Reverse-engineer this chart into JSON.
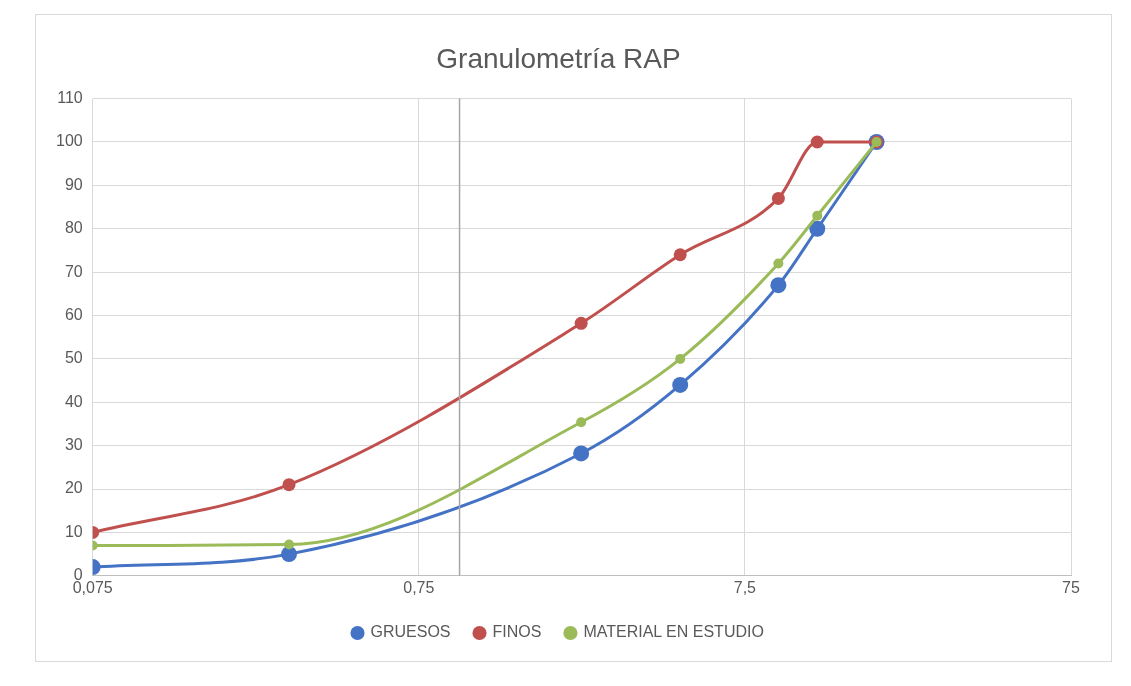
{
  "chart_data": {
    "type": "line",
    "title": "Granulometría RAP",
    "x": [
      0.075,
      0.3,
      2.36,
      4.75,
      9.5,
      12.5,
      19
    ],
    "series": [
      {
        "name": "GRUESOS",
        "color": "#4472c4",
        "values": [
          2,
          5,
          28.2,
          44,
          67,
          80,
          100
        ]
      },
      {
        "name": "FINOS",
        "color": "#c0504d",
        "values": [
          10,
          21,
          58.2,
          74,
          87,
          100,
          100
        ]
      },
      {
        "name": "MATERIAL EN ESTUDIO",
        "color": "#9bbb59",
        "values": [
          7,
          7.2,
          35.4,
          50,
          72,
          83,
          100
        ]
      }
    ],
    "log": "x",
    "xlim": [
      0.075,
      75
    ],
    "xticks": [
      {
        "value": 0.075,
        "label": "0,075"
      },
      {
        "value": 0.75,
        "label": "0,75"
      },
      {
        "value": 7.5,
        "label": "7,5"
      },
      {
        "value": 75,
        "label": "75"
      }
    ],
    "ylim": [
      0,
      110
    ],
    "yticks": [
      0,
      10,
      20,
      30,
      40,
      50,
      60,
      70,
      80,
      90,
      100,
      110
    ],
    "grid": true,
    "legend": "bottom",
    "marker": "circle",
    "ref_lines": [
      {
        "axis": "x",
        "value": 1,
        "label": null,
        "color": "#a6a6a6"
      }
    ]
  }
}
